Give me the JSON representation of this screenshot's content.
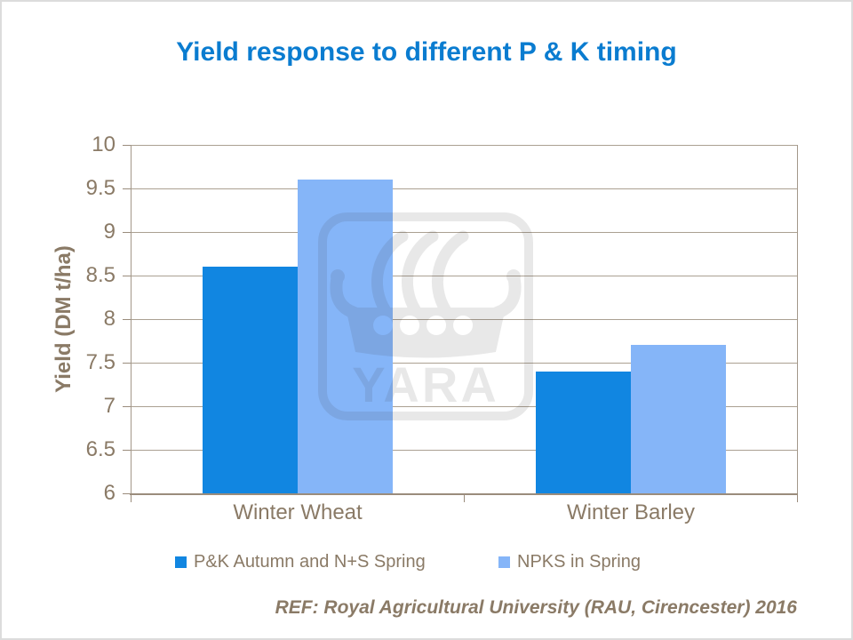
{
  "slide": {
    "title": "Yield response to different P & K timing",
    "footer": "REF: Royal Agricultural University (RAU, Cirencester) 2016",
    "watermark_label": "YARA"
  },
  "colors": {
    "title_blue": "#0a7cd0",
    "text_brown": "#8a7a66",
    "axis_line": "#9a8c7c",
    "gridline": "#aba092",
    "series_dark_blue": "#1186e1",
    "series_light_blue": "#85b5f8"
  },
  "chart_data": {
    "type": "bar",
    "title": "Yield response to different P & K timing",
    "categories": [
      "Winter Wheat",
      "Winter Barley"
    ],
    "series": [
      {
        "name": "P&K Autumn and N+S Spring",
        "color": "#1186e1",
        "values": [
          8.6,
          7.4
        ]
      },
      {
        "name": "NPKS in Spring",
        "color": "#85b5f8",
        "values": [
          9.6,
          7.7
        ]
      }
    ],
    "xlabel": "",
    "ylabel": "Yield (DM t/ha)",
    "ylim": [
      6,
      10
    ],
    "ytick_step": 0.5,
    "ytick_labels": [
      "10",
      "9.5",
      "9",
      "8.5",
      "8",
      "7.5",
      "7",
      "6.5",
      "6"
    ],
    "grid": true,
    "legend_position": "bottom",
    "source": "REF: Royal Agricultural University (RAU, Cirencester) 2016"
  }
}
